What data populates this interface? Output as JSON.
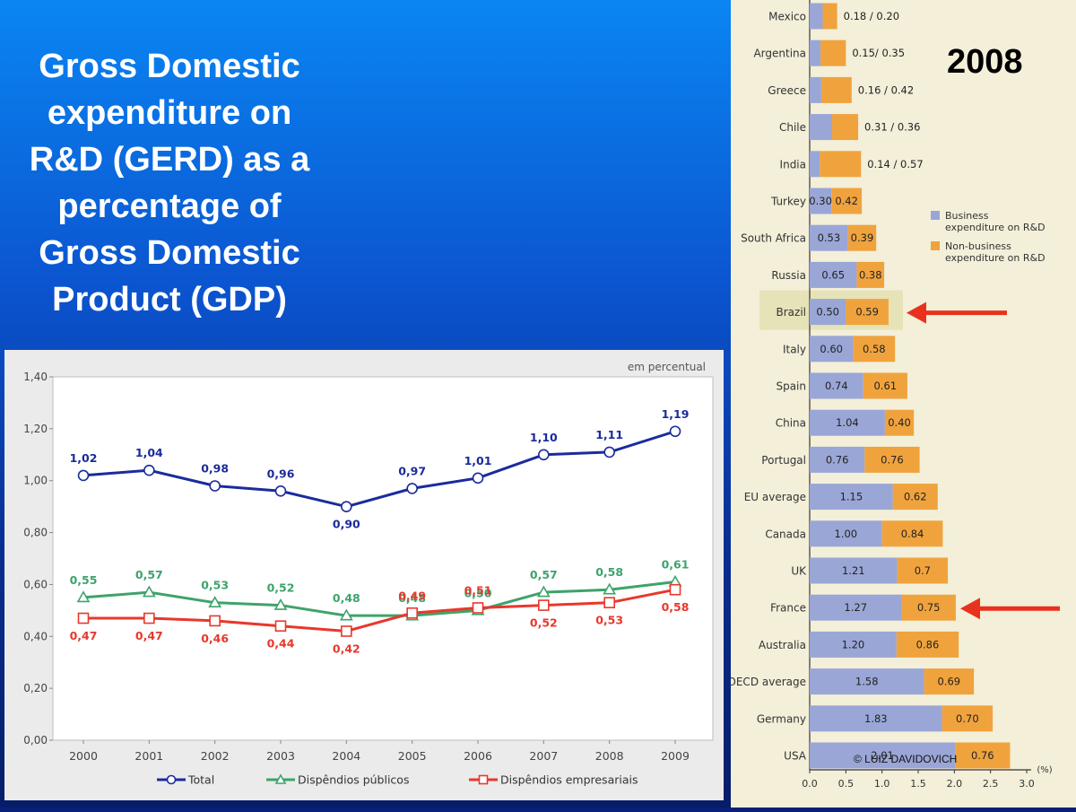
{
  "slide": {
    "title": "Gross Domestic\nexpenditure on\nR&D (GERD) as a\npercentage of\nGross Domestic\nProduct (GDP)"
  },
  "credit": "© LUIZ DAVIDOVICH",
  "colors": {
    "total": "#1b2b9c",
    "publico": "#3ea36b",
    "empresarial": "#e8382c",
    "business": "#9aa6d6",
    "non_business": "#f0a33d",
    "arrow": "#e8321d",
    "highlight": "#e6e3b8"
  },
  "chart_data": [
    {
      "type": "line",
      "unit_note": "em percentual",
      "x": [
        "2000",
        "2001",
        "2002",
        "2003",
        "2004",
        "2005",
        "2006",
        "2007",
        "2008",
        "2009"
      ],
      "ylim": [
        0,
        1.4
      ],
      "yticks": [
        "0,00",
        "0,20",
        "0,40",
        "0,60",
        "0,80",
        "1,00",
        "1,20",
        "1,40"
      ],
      "grid": false,
      "legend_position": "bottom",
      "series": [
        {
          "name": "Total",
          "values": [
            1.02,
            1.04,
            0.98,
            0.96,
            0.9,
            0.97,
            1.01,
            1.1,
            1.11,
            1.19
          ],
          "labels": [
            "1,02",
            "1,04",
            "0,98",
            "0,96",
            "0,90",
            "0,97",
            "1,01",
            "1,10",
            "1,11",
            "1,19"
          ]
        },
        {
          "name": "Dispêndios públicos",
          "values": [
            0.55,
            0.57,
            0.53,
            0.52,
            0.48,
            0.48,
            0.5,
            0.57,
            0.58,
            0.61
          ],
          "labels": [
            "0,55",
            "0,57",
            "0,53",
            "0,52",
            "0,48",
            "0,48",
            "0,50",
            "0,57",
            "0,58",
            "0,61"
          ]
        },
        {
          "name": "Dispêndios empresariais",
          "values": [
            0.47,
            0.47,
            0.46,
            0.44,
            0.42,
            0.49,
            0.51,
            0.52,
            0.53,
            0.58
          ],
          "labels": [
            "0,47",
            "0,47",
            "0,46",
            "0,44",
            "0,42",
            "0,49",
            "0,51",
            "0,52",
            "0,53",
            "0,58"
          ]
        }
      ]
    },
    {
      "type": "bar",
      "orientation": "horizontal",
      "stacked": true,
      "title": "2008",
      "xlabel": "(%)",
      "xlim": [
        0,
        3.0
      ],
      "xticks": [
        "0.0",
        "0.5",
        "1.0",
        "1.5",
        "2.0",
        "2.5",
        "3.0"
      ],
      "legend_position": "right",
      "categories": [
        "Mexico",
        "Argentina",
        "Greece",
        "Chile",
        "India",
        "Turkey",
        "South Africa",
        "Russia",
        "Brazil",
        "Italy",
        "Spain",
        "China",
        "Portugal",
        "EU average",
        "Canada",
        "UK",
        "France",
        "Australia",
        "OECD average",
        "Germany",
        "USA"
      ],
      "series": [
        {
          "name": "Business expenditure on R&D",
          "values": [
            0.18,
            0.15,
            0.16,
            0.31,
            0.14,
            0.3,
            0.53,
            0.65,
            0.5,
            0.6,
            0.74,
            1.04,
            0.76,
            1.15,
            1.0,
            1.21,
            1.27,
            1.2,
            1.58,
            1.83,
            2.01
          ],
          "labels": [
            "",
            "",
            "",
            "",
            "",
            "0.30",
            "0.53",
            "0.65",
            "0.50",
            "0.60",
            "0.74",
            "1.04",
            "0.76",
            "1.15",
            "1.00",
            "1.21",
            "1.27",
            "1.20",
            "1.58",
            "1.83",
            "2.01"
          ]
        },
        {
          "name": "Non-business expenditure on R&D",
          "values": [
            0.2,
            0.35,
            0.42,
            0.36,
            0.57,
            0.42,
            0.39,
            0.38,
            0.59,
            0.58,
            0.61,
            0.4,
            0.76,
            0.62,
            0.84,
            0.7,
            0.75,
            0.86,
            0.69,
            0.7,
            0.76
          ],
          "labels": [
            "",
            "",
            "",
            "",
            "",
            "0.42",
            "0.39",
            "0.38",
            "0.59",
            "0.58",
            "0.61",
            "0.40",
            "0.76",
            "0.62",
            "0.84",
            "0.7",
            "0.75",
            "0.86",
            "0.69",
            "0.70",
            "0.76"
          ]
        }
      ],
      "pair_labels": [
        "0.18 / 0.20",
        "0.15/ 0.35",
        "0.16 / 0.42",
        "0.31 / 0.36",
        "0.14 / 0.57",
        "",
        "",
        "",
        "",
        "",
        "",
        "",
        "",
        "",
        "",
        "",
        "",
        "",
        "",
        "",
        ""
      ],
      "highlighted": [
        "Brazil"
      ],
      "arrows": [
        "Brazil",
        "France"
      ]
    }
  ]
}
